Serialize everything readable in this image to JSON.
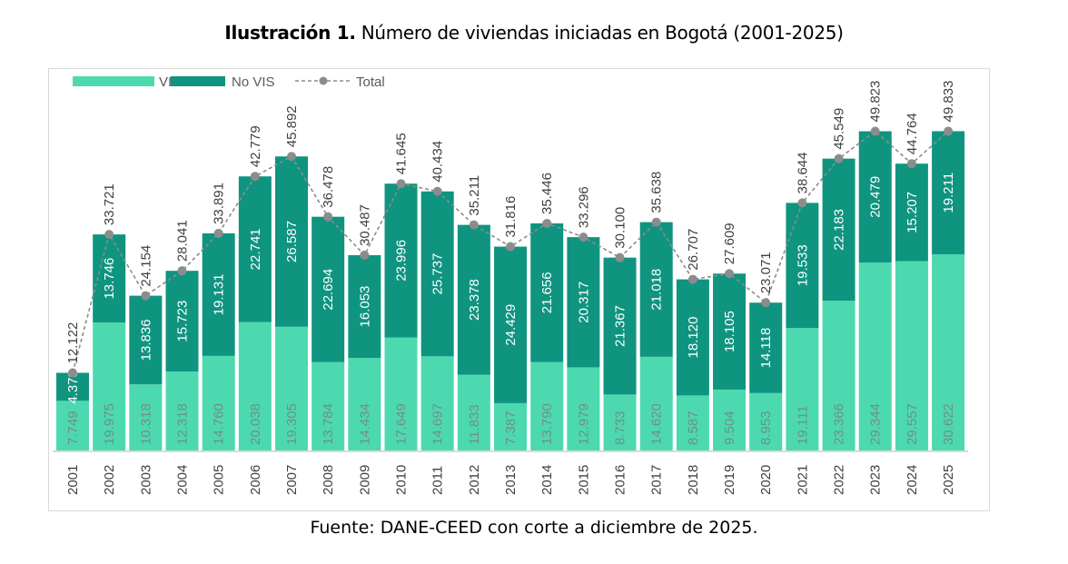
{
  "title_bold": "Ilustración 1.",
  "title_rest": " Número de viviendas iniciadas en Bogotá (2001-2025)",
  "source": "Fuente: DANE-CEED con corte a diciembre de 2025.",
  "colors": {
    "vis": "#4dd9b0",
    "no_vis": "#0f9480",
    "total": "#8c8c8c"
  },
  "chart_data": {
    "type": "bar",
    "stacked": true,
    "title": "Ilustración 1. Número de viviendas iniciadas en Bogotá (2001-2025)",
    "xlabel": "",
    "ylabel": "",
    "ylim": [
      0,
      55000
    ],
    "grid": false,
    "legend": "top-left",
    "categories": [
      "2001",
      "2002",
      "2003",
      "2004",
      "2005",
      "2006",
      "2007",
      "2008",
      "2009",
      "2010",
      "2011",
      "2012",
      "2013",
      "2014",
      "2015",
      "2016",
      "2017",
      "2018",
      "2019",
      "2020",
      "2021",
      "2022",
      "2023",
      "2024",
      "2025"
    ],
    "series": [
      {
        "name": "VIS",
        "type": "bar",
        "values": [
          7749,
          19975,
          10318,
          12318,
          14760,
          20038,
          19305,
          13784,
          14434,
          17649,
          14697,
          11833,
          7387,
          13790,
          12979,
          8733,
          14620,
          8587,
          9504,
          8953,
          19111,
          23366,
          29344,
          29557,
          30622
        ]
      },
      {
        "name": "No VIS",
        "type": "bar",
        "values": [
          4373,
          13746,
          13836,
          15723,
          19131,
          22741,
          26587,
          22694,
          16053,
          23996,
          25737,
          23378,
          24429,
          21656,
          20317,
          21367,
          21018,
          18120,
          18105,
          14118,
          19533,
          22183,
          20479,
          15207,
          19211
        ]
      },
      {
        "name": "Total",
        "type": "line",
        "style": "dashed",
        "values": [
          12122,
          33721,
          24154,
          28041,
          33891,
          42779,
          45892,
          36478,
          30487,
          41645,
          40434,
          35211,
          31816,
          35446,
          33296,
          30100,
          35638,
          26707,
          27609,
          23071,
          38644,
          45549,
          49823,
          44764,
          49833
        ]
      }
    ]
  }
}
